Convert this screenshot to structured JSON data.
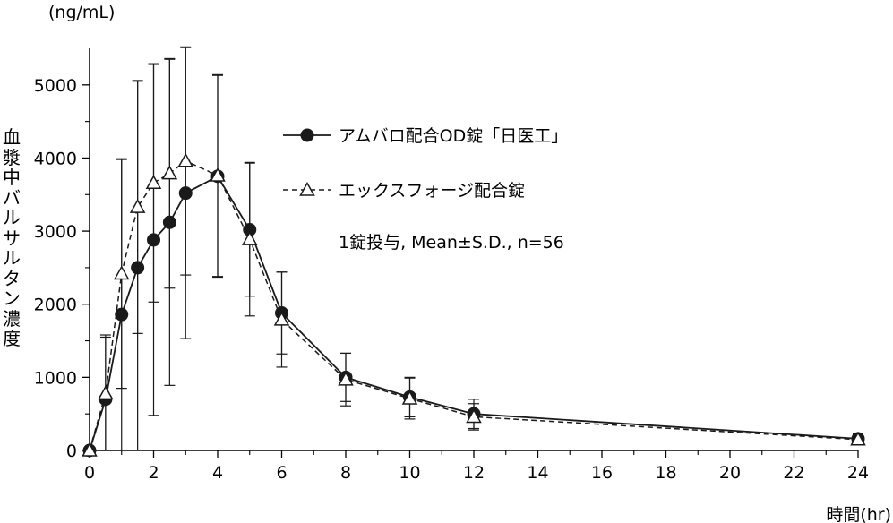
{
  "chart_data": {
    "type": "line",
    "y_unit": "(ng/mL)",
    "ylabel": "血漿中バルサルタン濃度",
    "xlabel": "時間(hr)",
    "xlim": [
      0,
      24
    ],
    "ylim": [
      0,
      5500
    ],
    "x_ticks": [
      0,
      2,
      4,
      6,
      8,
      10,
      12,
      14,
      16,
      18,
      20,
      22,
      24
    ],
    "y_ticks": [
      0,
      1000,
      2000,
      3000,
      4000,
      5000
    ],
    "grid": false,
    "legend_position": "top-right",
    "annotation": "1錠投与, Mean±S.D., n=56",
    "series": [
      {
        "name": "アムバロ配合OD錠「日医工」",
        "marker": "filled-circle",
        "line_style": "solid",
        "color": "#1a1a1a",
        "points": [
          {
            "x": 0,
            "y": 0
          },
          {
            "x": 0.5,
            "y": 700,
            "sd": 850
          },
          {
            "x": 1,
            "y": 1860,
            "sd": 2120
          },
          {
            "x": 1.5,
            "y": 2500,
            "sd": 2550
          },
          {
            "x": 2,
            "y": 2880,
            "sd": 2400
          },
          {
            "x": 2.5,
            "y": 3120,
            "sd": 2230
          },
          {
            "x": 3,
            "y": 3520,
            "sd": 1990
          },
          {
            "x": 4,
            "y": 3750,
            "sd": 1380
          },
          {
            "x": 5,
            "y": 3020,
            "sd": 910
          },
          {
            "x": 6,
            "y": 1880,
            "sd": 560
          },
          {
            "x": 8,
            "y": 1000,
            "sd": 330
          },
          {
            "x": 10,
            "y": 730,
            "sd": 270
          },
          {
            "x": 12,
            "y": 500,
            "sd": 200
          },
          {
            "x": 24,
            "y": 160,
            "sd": 70
          }
        ]
      },
      {
        "name": "エックスフォージ配合錠",
        "marker": "open-triangle",
        "line_style": "dashed",
        "color": "#1a1a1a",
        "points": [
          {
            "x": 0,
            "y": 0
          },
          {
            "x": 0.5,
            "y": 780,
            "sd": 800
          },
          {
            "x": 1,
            "y": 2420,
            "sd": 1570
          },
          {
            "x": 1.5,
            "y": 3330,
            "sd": 1730
          },
          {
            "x": 2,
            "y": 3660,
            "sd": 1630
          },
          {
            "x": 2.5,
            "y": 3790,
            "sd": 1570
          },
          {
            "x": 3,
            "y": 3960,
            "sd": 1560
          },
          {
            "x": 4,
            "y": 3760,
            "sd": 1380
          },
          {
            "x": 5,
            "y": 2890,
            "sd": 1050
          },
          {
            "x": 6,
            "y": 1790,
            "sd": 650
          },
          {
            "x": 8,
            "y": 970,
            "sd": 360
          },
          {
            "x": 10,
            "y": 710,
            "sd": 280
          },
          {
            "x": 12,
            "y": 460,
            "sd": 180
          },
          {
            "x": 24,
            "y": 150,
            "sd": 70
          }
        ]
      }
    ]
  }
}
